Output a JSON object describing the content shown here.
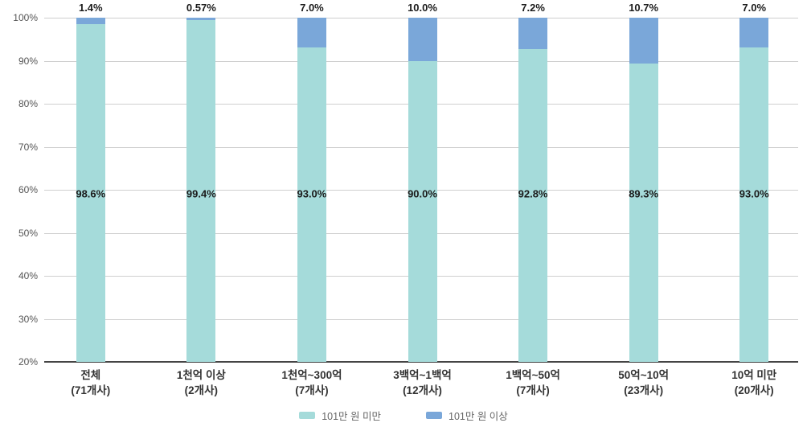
{
  "chart_data": {
    "type": "bar",
    "stacked": true,
    "title": "",
    "xlabel": "",
    "ylabel": "",
    "categories": [
      "전체",
      "1천억 이상",
      "1천억~300억",
      "3백억~1백억",
      "1백억~50억",
      "50억~10억",
      "10억 미만"
    ],
    "category_counts": [
      "(71개사)",
      "(2개사)",
      "(7개사)",
      "(12개사)",
      "(7개사)",
      "(23개사)",
      "(20개사)"
    ],
    "series": [
      {
        "name": "101만 원 미만",
        "color": "#a5dbda",
        "values": [
          98.6,
          99.4,
          93.0,
          90.0,
          92.8,
          89.3,
          93.0
        ],
        "labels": [
          "98.6%",
          "99.4%",
          "93.0%",
          "90.0%",
          "92.8%",
          "89.3%",
          "93.0%"
        ]
      },
      {
        "name": "101만 원 이상",
        "color": "#7aa7d9",
        "values": [
          1.4,
          0.57,
          7.0,
          10.0,
          7.2,
          10.7,
          7.0
        ],
        "labels": [
          "1.4%",
          "0.57%",
          "7.0%",
          "10.0%",
          "7.2%",
          "10.7%",
          "7.0%"
        ]
      }
    ],
    "y_ticks": [
      "100%",
      "90%",
      "80%",
      "70%",
      "60%",
      "50%",
      "40%",
      "30%",
      "20%"
    ],
    "ylim": [
      20,
      100
    ],
    "grid": true,
    "legend_position": "bottom"
  },
  "colors": {
    "series_under": "#a5dbda",
    "series_over": "#7aa7d9",
    "gridline": "#cfcfcf",
    "baseline": "#454545"
  }
}
